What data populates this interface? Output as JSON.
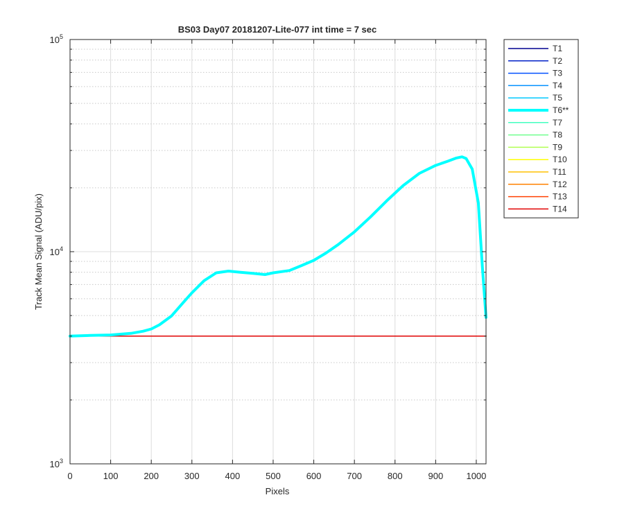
{
  "chart_data": {
    "type": "line",
    "title": "BS03 Day07 20181207-Lite-077 int time = 7 sec",
    "xlabel": "Pixels",
    "ylabel": "Track Mean Signal (ADU/pix)",
    "xlim": [
      0,
      1024
    ],
    "ylim": [
      1000,
      100000
    ],
    "yscale": "log",
    "grid": true,
    "legend_position": "outside-top-right",
    "x_ticks": [
      0,
      100,
      200,
      300,
      400,
      500,
      600,
      700,
      800,
      900,
      1000
    ],
    "x_tick_labels": [
      "0",
      "100",
      "200",
      "300",
      "400",
      "500",
      "600",
      "700",
      "800",
      "900",
      "1000"
    ],
    "y_ticks": [
      {
        "value": 1000,
        "base": "10",
        "exp": "3"
      },
      {
        "value": 10000,
        "base": "10",
        "exp": "4"
      },
      {
        "value": 100000,
        "base": "10",
        "exp": "5"
      }
    ],
    "series": [
      {
        "name": "T1",
        "color": "#00008f",
        "width": 1.5,
        "values": [
          [
            0,
            4000
          ],
          [
            1024,
            4000
          ]
        ]
      },
      {
        "name": "T2",
        "color": "#0020c8",
        "width": 1.5,
        "values": [
          [
            0,
            4000
          ],
          [
            1024,
            4000
          ]
        ]
      },
      {
        "name": "T3",
        "color": "#0050ff",
        "width": 1.5,
        "values": [
          [
            0,
            4000
          ],
          [
            1024,
            4000
          ]
        ]
      },
      {
        "name": "T4",
        "color": "#0090ff",
        "width": 1.5,
        "values": [
          [
            0,
            4000
          ],
          [
            1024,
            4000
          ]
        ]
      },
      {
        "name": "T5",
        "color": "#00c8ff",
        "width": 1.5,
        "values": [
          [
            0,
            4000
          ],
          [
            1024,
            4000
          ]
        ]
      },
      {
        "name": "T6**",
        "color": "#00ffff",
        "width": 4,
        "values": [
          [
            0,
            4000
          ],
          [
            50,
            4030
          ],
          [
            100,
            4050
          ],
          [
            150,
            4120
          ],
          [
            180,
            4220
          ],
          [
            200,
            4320
          ],
          [
            220,
            4520
          ],
          [
            250,
            4980
          ],
          [
            280,
            5800
          ],
          [
            300,
            6400
          ],
          [
            330,
            7300
          ],
          [
            360,
            7950
          ],
          [
            390,
            8100
          ],
          [
            420,
            8000
          ],
          [
            450,
            7900
          ],
          [
            480,
            7800
          ],
          [
            500,
            7950
          ],
          [
            540,
            8150
          ],
          [
            570,
            8600
          ],
          [
            600,
            9100
          ],
          [
            630,
            9850
          ],
          [
            660,
            10800
          ],
          [
            700,
            12400
          ],
          [
            740,
            14600
          ],
          [
            780,
            17400
          ],
          [
            820,
            20500
          ],
          [
            860,
            23400
          ],
          [
            900,
            25500
          ],
          [
            930,
            26700
          ],
          [
            950,
            27600
          ],
          [
            965,
            28000
          ],
          [
            975,
            27500
          ],
          [
            990,
            24500
          ],
          [
            1005,
            17000
          ],
          [
            1015,
            8500
          ],
          [
            1024,
            4900
          ]
        ]
      },
      {
        "name": "T7",
        "color": "#40ffbf",
        "width": 1.5,
        "values": [
          [
            0,
            4000
          ],
          [
            1024,
            4000
          ]
        ]
      },
      {
        "name": "T8",
        "color": "#70ff8f",
        "width": 1.5,
        "values": [
          [
            0,
            4000
          ],
          [
            1024,
            4000
          ]
        ]
      },
      {
        "name": "T9",
        "color": "#b0ff50",
        "width": 1.5,
        "values": [
          [
            0,
            4000
          ],
          [
            1024,
            4000
          ]
        ]
      },
      {
        "name": "T10",
        "color": "#ffff00",
        "width": 1.5,
        "values": [
          [
            0,
            4000
          ],
          [
            1024,
            4000
          ]
        ]
      },
      {
        "name": "T11",
        "color": "#ffc000",
        "width": 1.5,
        "values": [
          [
            0,
            4000
          ],
          [
            1024,
            4000
          ]
        ]
      },
      {
        "name": "T12",
        "color": "#ff8000",
        "width": 1.5,
        "values": [
          [
            0,
            4000
          ],
          [
            1024,
            4000
          ]
        ]
      },
      {
        "name": "T13",
        "color": "#ff4000",
        "width": 1.5,
        "values": [
          [
            0,
            4000
          ],
          [
            1024,
            4000
          ]
        ]
      },
      {
        "name": "T14",
        "color": "#e00000",
        "width": 1.5,
        "values": [
          [
            0,
            4000
          ],
          [
            1024,
            4000
          ]
        ]
      }
    ]
  }
}
